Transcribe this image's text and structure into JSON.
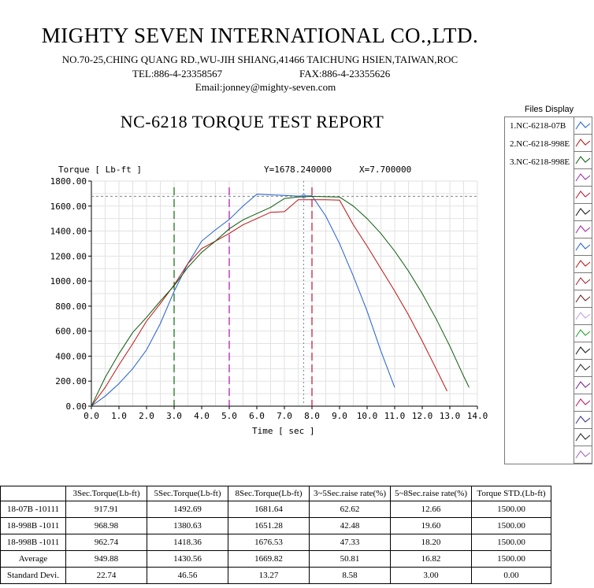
{
  "header": {
    "company": "MIGHTY SEVEN INTERNATIONAL CO.,LTD.",
    "address": "NO.70-25,CHING QUANG RD.,WU-JIH SHIANG,41466 TAICHUNG HSIEN,TAIWAN,ROC",
    "tel": "TEL:886-4-23358567",
    "fax": "FAX:886-4-23355626",
    "email": "Email:jonney@mighty-seven.com",
    "report_title": "NC-6218 TORQUE TEST REPORT"
  },
  "readout": {
    "y_text": "Y=1678.240000",
    "x_text": "X=7.700000",
    "cursor_x": 7.7,
    "cursor_y": 1678.24
  },
  "files_panel": {
    "title": "Files Display",
    "items": [
      "1.NC-6218-07B",
      "2.NC-6218-998E",
      "3.NC-6218-998E"
    ],
    "swatch_colors": [
      "#1f5fd0",
      "#c01010",
      "#0a5a0a",
      "#9a2aa0",
      "#c01030",
      "#101010",
      "#a020a0",
      "#1f5fd0",
      "#c01010",
      "#a02030",
      "#6a1a1a",
      "#c0a0e0",
      "#20a020",
      "#101010",
      "#2a2a2a",
      "#6a208a",
      "#c01060",
      "#3a2a8a",
      "#202020",
      "#a060c0",
      "#60c0c0"
    ]
  },
  "chart_data": {
    "type": "line",
    "xlabel": "Time [ sec ]",
    "ylabel": "Torque [ Lb-ft ]",
    "xlim": [
      0,
      14
    ],
    "ylim": [
      0,
      1800
    ],
    "x_ticks": [
      "0.0",
      "1.0",
      "2.0",
      "3.0",
      "4.0",
      "5.0",
      "6.0",
      "7.0",
      "8.0",
      "9.0",
      "10.0",
      "11.0",
      "12.0",
      "13.0",
      "14.0"
    ],
    "y_ticks": [
      "0.00",
      "200.00",
      "400.00",
      "600.00",
      "800.00",
      "1000.00",
      "1200.00",
      "1400.00",
      "1600.00",
      "1800.00"
    ],
    "grid": true,
    "vertical_markers": [
      {
        "x": 3.0,
        "color": "#0a6a0a"
      },
      {
        "x": 5.0,
        "color": "#b010b0"
      },
      {
        "x": 8.0,
        "color": "#c01030"
      }
    ],
    "horizontal_marker": {
      "y": 1678.24,
      "color": "#808080"
    },
    "series": [
      {
        "color": "#1f5fd0",
        "points": [
          [
            0,
            0
          ],
          [
            0.5,
            80
          ],
          [
            1.0,
            180
          ],
          [
            1.5,
            300
          ],
          [
            2.0,
            450
          ],
          [
            2.5,
            660
          ],
          [
            3.0,
            918
          ],
          [
            3.5,
            1140
          ],
          [
            4.0,
            1320
          ],
          [
            4.5,
            1410
          ],
          [
            5.0,
            1493
          ],
          [
            5.5,
            1600
          ],
          [
            6.0,
            1695
          ],
          [
            6.5,
            1690
          ],
          [
            7.0,
            1685
          ],
          [
            7.5,
            1680
          ],
          [
            8.0,
            1682
          ],
          [
            8.5,
            1520
          ],
          [
            9.0,
            1300
          ],
          [
            9.5,
            1040
          ],
          [
            10.0,
            760
          ],
          [
            10.5,
            440
          ],
          [
            11.0,
            150
          ]
        ]
      },
      {
        "color": "#c01010",
        "points": [
          [
            0,
            0
          ],
          [
            0.5,
            150
          ],
          [
            1.0,
            330
          ],
          [
            1.5,
            500
          ],
          [
            2.0,
            680
          ],
          [
            2.5,
            820
          ],
          [
            3.0,
            969
          ],
          [
            3.5,
            1140
          ],
          [
            4.0,
            1260
          ],
          [
            4.5,
            1320
          ],
          [
            5.0,
            1381
          ],
          [
            5.5,
            1450
          ],
          [
            6.0,
            1500
          ],
          [
            6.5,
            1550
          ],
          [
            7.0,
            1555
          ],
          [
            7.5,
            1650
          ],
          [
            8.0,
            1651
          ],
          [
            8.5,
            1650
          ],
          [
            9.0,
            1648
          ],
          [
            9.5,
            1450
          ],
          [
            10.0,
            1280
          ],
          [
            10.5,
            1100
          ],
          [
            11.0,
            920
          ],
          [
            11.5,
            730
          ],
          [
            12.0,
            520
          ],
          [
            12.5,
            300
          ],
          [
            12.9,
            120
          ]
        ]
      },
      {
        "color": "#0a5a0a",
        "points": [
          [
            0,
            0
          ],
          [
            0.5,
            230
          ],
          [
            1.0,
            420
          ],
          [
            1.5,
            590
          ],
          [
            2.0,
            710
          ],
          [
            2.5,
            840
          ],
          [
            3.0,
            963
          ],
          [
            3.5,
            1110
          ],
          [
            4.0,
            1230
          ],
          [
            4.5,
            1320
          ],
          [
            5.0,
            1418
          ],
          [
            5.5,
            1490
          ],
          [
            6.0,
            1540
          ],
          [
            6.5,
            1590
          ],
          [
            7.0,
            1660
          ],
          [
            7.5,
            1672
          ],
          [
            8.0,
            1677
          ],
          [
            8.5,
            1675
          ],
          [
            9.0,
            1672
          ],
          [
            9.5,
            1600
          ],
          [
            10.0,
            1500
          ],
          [
            10.5,
            1380
          ],
          [
            11.0,
            1240
          ],
          [
            11.5,
            1080
          ],
          [
            12.0,
            900
          ],
          [
            12.5,
            700
          ],
          [
            13.0,
            480
          ],
          [
            13.5,
            240
          ],
          [
            13.7,
            150
          ]
        ]
      }
    ]
  },
  "table": {
    "headers": [
      "",
      "3Sec.Torque(Lb-ft)",
      "5Sec.Torque(Lb-ft)",
      "8Sec.Torque(Lb-ft)",
      "3~5Sec.raise rate(%)",
      "5~8Sec.raise rate(%)",
      "Torque STD.(Lb-ft)"
    ],
    "rows": [
      [
        "18-07B -10111",
        "917.91",
        "1492.69",
        "1681.64",
        "62.62",
        "12.66",
        "1500.00"
      ],
      [
        "18-998B -1011",
        "968.98",
        "1380.63",
        "1651.28",
        "42.48",
        "19.60",
        "1500.00"
      ],
      [
        "18-998B -1011",
        "962.74",
        "1418.36",
        "1676.53",
        "47.33",
        "18.20",
        "1500.00"
      ],
      [
        "Average",
        "949.88",
        "1430.56",
        "1669.82",
        "50.81",
        "16.82",
        "1500.00"
      ],
      [
        "Standard Devi.",
        "22.74",
        "46.56",
        "13.27",
        "8.58",
        "3.00",
        "0.00"
      ]
    ]
  }
}
